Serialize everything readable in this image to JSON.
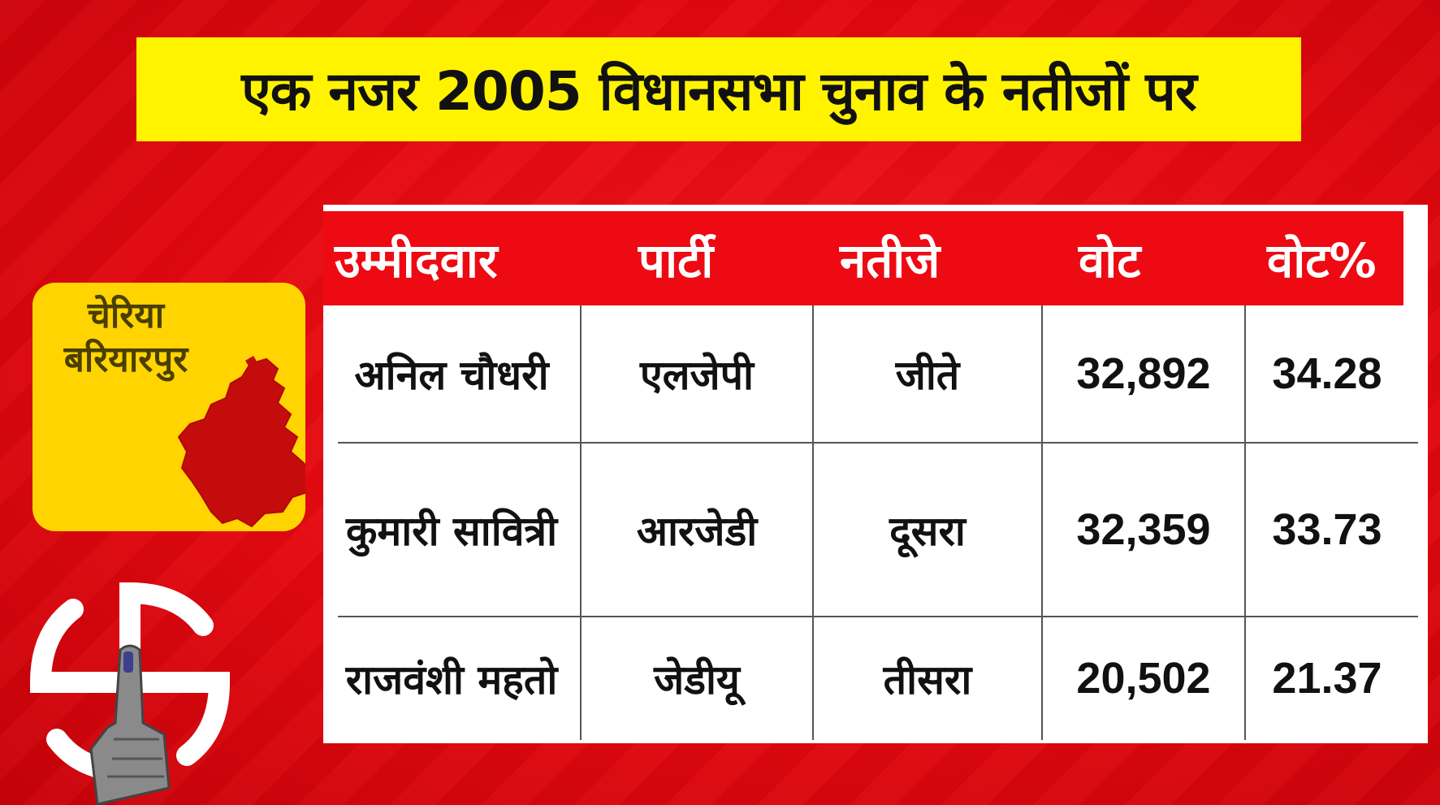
{
  "title": "एक नजर 2005 विधानसभा चुनाव के नतीजों पर",
  "constituency": {
    "line1": "चेरिया",
    "line2": "बरियारपुर"
  },
  "table": {
    "headers": [
      "उम्मीदवार",
      "पार्टी",
      "नतीजे",
      "वोट",
      "वोट%"
    ],
    "rows": [
      [
        "अनिल चौधरी",
        "एलजेपी",
        "जीते",
        "32,892",
        "34.28"
      ],
      [
        "कुमारी सावित्री",
        "आरजेडी",
        "दूसरा",
        "32,359",
        "33.73"
      ],
      [
        "राजवंशी महतो",
        "जेडीयू",
        "तीसरा",
        "20,502",
        "21.37"
      ]
    ]
  },
  "colors": {
    "background": "#e3080f",
    "banner": "#fff300",
    "header": "#ee0a12",
    "badge": "#ffd400",
    "map": "#c50c0c"
  },
  "icons": [
    "map-shape-icon",
    "election-symbol-icon"
  ]
}
